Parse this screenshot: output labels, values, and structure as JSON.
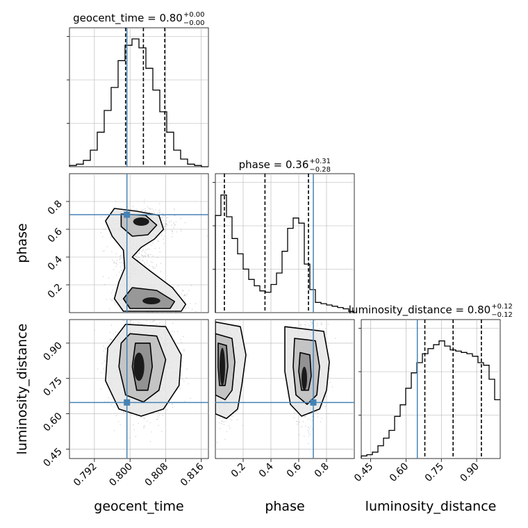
{
  "chart_data": {
    "type": "corner",
    "parameters": [
      "geocent_time",
      "phase",
      "luminosity_distance"
    ],
    "truths": {
      "geocent_time": 0.7993,
      "phase": 0.705,
      "luminosity_distance": 0.648
    },
    "truth_color": "#4682b4",
    "ranges": {
      "geocent_time": [
        0.7864,
        0.8176
      ],
      "phase": [
        0.0,
        1.0
      ],
      "luminosity_distance": [
        0.41,
        1.0
      ]
    },
    "titles": [
      {
        "param": "geocent_time",
        "label": "geocent_time = 0.80",
        "plus": "+0.00",
        "minus": "−0.00"
      },
      {
        "param": "phase",
        "label": "phase = 0.36",
        "plus": "+0.31",
        "minus": "−0.28"
      },
      {
        "param": "luminosity_distance",
        "label": "luminosity_distance = 0.80",
        "plus": "+0.12",
        "minus": "−0.12"
      }
    ],
    "quantiles": {
      "geocent_time": [
        0.799,
        0.803,
        0.8078
      ],
      "phase": [
        0.065,
        0.357,
        0.67
      ],
      "luminosity_distance": [
        0.68,
        0.8,
        0.92
      ]
    },
    "axis_labels": {
      "x": [
        "geocent_time",
        "phase",
        "luminosity_distance"
      ],
      "y": [
        "phase",
        "luminosity_distance"
      ]
    },
    "ticks": {
      "geocent_time": [
        "0.792",
        "0.800",
        "0.808",
        "0.816"
      ],
      "phase": [
        "0.2",
        "0.4",
        "0.6",
        "0.8"
      ],
      "luminosity_distance": [
        "0.45",
        "0.60",
        "0.75",
        "0.90"
      ]
    },
    "histograms": {
      "geocent_time": [
        0.01,
        0.02,
        0.05,
        0.13,
        0.27,
        0.44,
        0.62,
        0.83,
        0.95,
        1.0,
        0.93,
        0.77,
        0.6,
        0.43,
        0.27,
        0.13,
        0.06,
        0.02,
        0.01,
        0.0
      ],
      "phase": [
        0.76,
        0.92,
        0.75,
        0.58,
        0.46,
        0.34,
        0.26,
        0.21,
        0.17,
        0.16,
        0.22,
        0.31,
        0.48,
        0.66,
        0.74,
        0.7,
        0.38,
        0.18,
        0.08,
        0.07,
        0.06,
        0.05,
        0.04,
        0.03,
        0.01
      ],
      "luminosity_distance": [
        0.02,
        0.03,
        0.05,
        0.1,
        0.16,
        0.22,
        0.33,
        0.42,
        0.55,
        0.67,
        0.75,
        0.82,
        0.86,
        0.89,
        0.92,
        0.88,
        0.85,
        0.84,
        0.83,
        0.82,
        0.8,
        0.75,
        0.73,
        0.62,
        0.46
      ]
    },
    "grid": true
  }
}
